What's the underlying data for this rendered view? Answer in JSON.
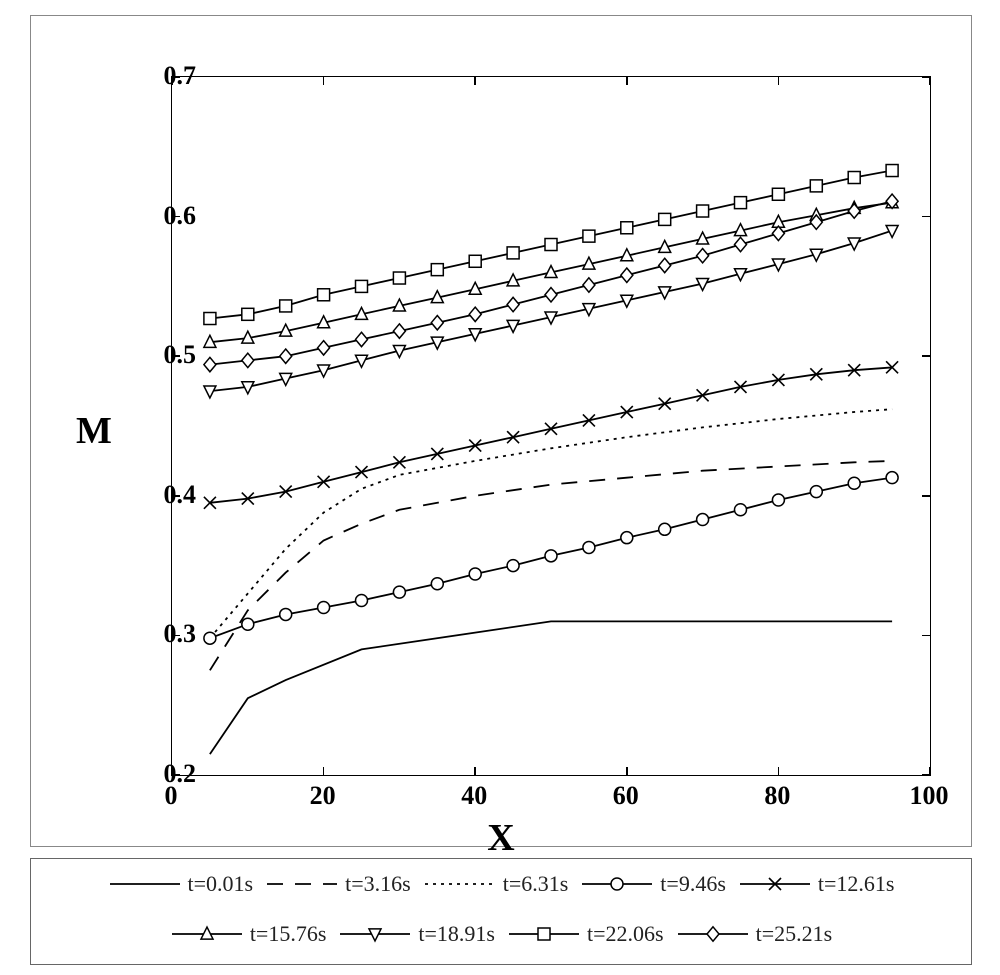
{
  "chart": {
    "type": "line",
    "xlabel": "X",
    "ylabel": "M",
    "xlabel_fontsize": 38,
    "ylabel_fontsize": 38,
    "tick_fontsize": 26,
    "background_color": "#ffffff",
    "axis_color": "#000000",
    "line_color": "#000000",
    "line_width": 1.8,
    "marker_size": 6,
    "xlim": [
      0,
      100
    ],
    "ylim": [
      0.2,
      0.7
    ],
    "xticks": [
      0,
      20,
      40,
      60,
      80,
      100
    ],
    "xtick_labels": [
      "0",
      "20",
      "40",
      "60",
      "80",
      "100"
    ],
    "yticks": [
      0.2,
      0.3,
      0.4,
      0.5,
      0.6,
      0.7
    ],
    "ytick_labels": [
      "0.2",
      "0.3",
      "0.4",
      "0.5",
      "0.6",
      "0.7"
    ],
    "series": [
      {
        "legend": "t=0.01s",
        "dash": "solid",
        "marker": "none",
        "x": [
          5,
          10,
          15,
          25,
          50,
          95
        ],
        "y": [
          0.215,
          0.255,
          0.268,
          0.29,
          0.31,
          0.31
        ]
      },
      {
        "legend": "t=3.16s",
        "dash": "longdash",
        "marker": "none",
        "x": [
          5,
          10,
          15,
          20,
          25,
          30,
          40,
          50,
          60,
          70,
          80,
          90,
          95
        ],
        "y": [
          0.275,
          0.318,
          0.345,
          0.368,
          0.38,
          0.39,
          0.4,
          0.408,
          0.413,
          0.418,
          0.421,
          0.424,
          0.425
        ]
      },
      {
        "legend": "t=6.31s",
        "dash": "dot",
        "marker": "none",
        "x": [
          5,
          10,
          15,
          20,
          25,
          30,
          35,
          40,
          50,
          60,
          70,
          80,
          90,
          95
        ],
        "y": [
          0.298,
          0.33,
          0.362,
          0.388,
          0.405,
          0.415,
          0.42,
          0.425,
          0.434,
          0.442,
          0.449,
          0.455,
          0.46,
          0.462
        ]
      },
      {
        "legend": "t=9.46s",
        "dash": "solid",
        "marker": "circle",
        "x": [
          5,
          10,
          15,
          20,
          25,
          30,
          35,
          40,
          45,
          50,
          55,
          60,
          65,
          70,
          75,
          80,
          85,
          90,
          95
        ],
        "y": [
          0.298,
          0.308,
          0.315,
          0.32,
          0.325,
          0.331,
          0.337,
          0.344,
          0.35,
          0.357,
          0.363,
          0.37,
          0.376,
          0.383,
          0.39,
          0.397,
          0.403,
          0.409,
          0.413
        ]
      },
      {
        "legend": "t=12.61s",
        "dash": "solid",
        "marker": "x",
        "x": [
          5,
          10,
          15,
          20,
          25,
          30,
          35,
          40,
          45,
          50,
          55,
          60,
          65,
          70,
          75,
          80,
          85,
          90,
          95
        ],
        "y": [
          0.395,
          0.398,
          0.403,
          0.41,
          0.417,
          0.424,
          0.43,
          0.436,
          0.442,
          0.448,
          0.454,
          0.46,
          0.466,
          0.472,
          0.478,
          0.483,
          0.487,
          0.49,
          0.492
        ]
      },
      {
        "legend": "t=15.76s",
        "dash": "solid",
        "marker": "triangle",
        "x": [
          5,
          10,
          15,
          20,
          25,
          30,
          35,
          40,
          45,
          50,
          55,
          60,
          65,
          70,
          75,
          80,
          85,
          90,
          95
        ],
        "y": [
          0.51,
          0.513,
          0.518,
          0.524,
          0.53,
          0.536,
          0.542,
          0.548,
          0.554,
          0.56,
          0.566,
          0.572,
          0.578,
          0.584,
          0.59,
          0.596,
          0.601,
          0.606,
          0.61
        ]
      },
      {
        "legend": "t=18.91s",
        "dash": "solid",
        "marker": "triangle_down",
        "x": [
          5,
          10,
          15,
          20,
          25,
          30,
          35,
          40,
          45,
          50,
          55,
          60,
          65,
          70,
          75,
          80,
          85,
          90,
          95
        ],
        "y": [
          0.475,
          0.478,
          0.484,
          0.49,
          0.497,
          0.504,
          0.51,
          0.516,
          0.522,
          0.528,
          0.534,
          0.54,
          0.546,
          0.552,
          0.559,
          0.566,
          0.573,
          0.581,
          0.59
        ]
      },
      {
        "legend": "t=22.06s",
        "dash": "solid",
        "marker": "square",
        "x": [
          5,
          10,
          15,
          20,
          25,
          30,
          35,
          40,
          45,
          50,
          55,
          60,
          65,
          70,
          75,
          80,
          85,
          90,
          95
        ],
        "y": [
          0.527,
          0.53,
          0.536,
          0.544,
          0.55,
          0.556,
          0.562,
          0.568,
          0.574,
          0.58,
          0.586,
          0.592,
          0.598,
          0.604,
          0.61,
          0.616,
          0.622,
          0.628,
          0.633
        ]
      },
      {
        "legend": "t=25.21s",
        "dash": "solid",
        "marker": "diamond",
        "x": [
          5,
          10,
          15,
          20,
          25,
          30,
          35,
          40,
          45,
          50,
          55,
          60,
          65,
          70,
          75,
          80,
          85,
          90,
          95
        ],
        "y": [
          0.494,
          0.497,
          0.5,
          0.506,
          0.512,
          0.518,
          0.524,
          0.53,
          0.537,
          0.544,
          0.551,
          0.558,
          0.565,
          0.572,
          0.58,
          0.588,
          0.596,
          0.604,
          0.611
        ]
      }
    ]
  },
  "legend": {
    "border_color": "#666666",
    "font_size": 22,
    "rows": [
      [
        {
          "label": "t=0.01s",
          "dash": "solid",
          "marker": "none"
        },
        {
          "label": "t=3.16s",
          "dash": "longdash",
          "marker": "none"
        },
        {
          "label": "t=6.31s",
          "dash": "dot",
          "marker": "none"
        },
        {
          "label": "t=9.46s",
          "dash": "solid",
          "marker": "circle"
        },
        {
          "label": "t=12.61s",
          "dash": "solid",
          "marker": "x"
        }
      ],
      [
        {
          "label": "t=15.76s",
          "dash": "solid",
          "marker": "triangle"
        },
        {
          "label": "t=18.91s",
          "dash": "solid",
          "marker": "triangle_down"
        },
        {
          "label": "t=22.06s",
          "dash": "solid",
          "marker": "square"
        },
        {
          "label": "t=25.21s",
          "dash": "solid",
          "marker": "diamond"
        }
      ]
    ]
  }
}
